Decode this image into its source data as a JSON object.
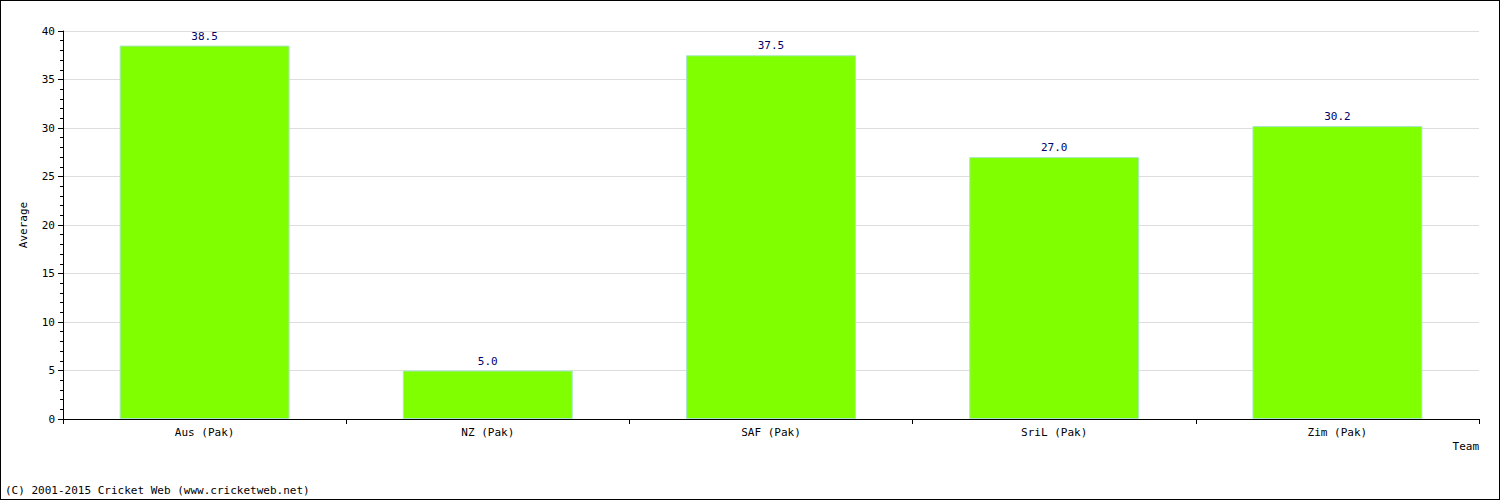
{
  "chart_data": {
    "type": "bar",
    "x_label": "Team",
    "y_label": "Average",
    "categories": [
      "Aus (Pak)",
      "NZ (Pak)",
      "SAF (Pak)",
      "SriL (Pak)",
      "Zim (Pak)"
    ],
    "values": [
      38.5,
      5.0,
      37.5,
      27.0,
      30.2
    ],
    "value_labels": [
      "38.5",
      "5.0",
      "37.5",
      "27.0",
      "30.2"
    ],
    "data_labels": true,
    "color": "#80ff00",
    "ylim": [
      0,
      40
    ],
    "yticks": [
      0,
      5,
      10,
      15,
      20,
      25,
      30,
      35,
      40
    ],
    "grid": true,
    "annotations": [
      "(C) 2001-2015 Cricket Web (www.cricketweb.net)"
    ]
  }
}
